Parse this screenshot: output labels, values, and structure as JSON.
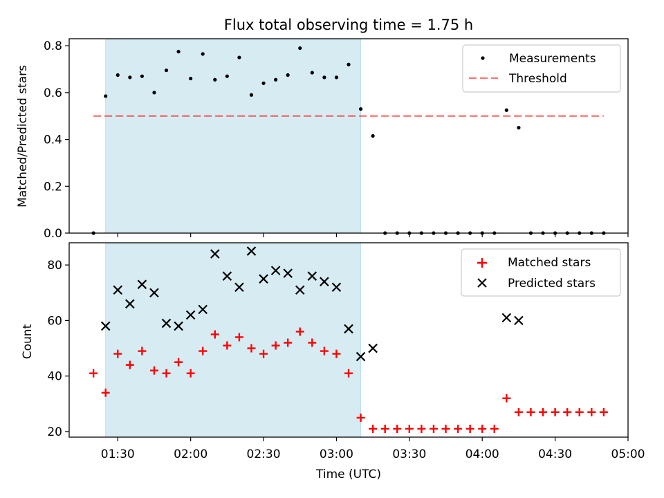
{
  "title": "Flux total observing time = 1.75 h",
  "colors": {
    "shade": "#add8e6",
    "threshold": "#ff0000",
    "matched": "#ff0000",
    "predicted": "#000000",
    "measurements": "#000000"
  },
  "chart_data": [
    {
      "type": "scatter",
      "ylabel": "Matched/Predicted stars",
      "xlim": [
        "01:10",
        "05:00"
      ],
      "ylim": [
        0,
        0.83
      ],
      "yticks": [
        "0.0",
        "0.2",
        "0.4",
        "0.6",
        "0.8"
      ],
      "grid": false,
      "legend": "top-right",
      "shaded_region": {
        "from": "01:25",
        "to": "03:10"
      },
      "threshold": {
        "name": "Threshold",
        "value": 0.5,
        "from": "01:20",
        "to": "04:50",
        "style": "dashed"
      },
      "series": [
        {
          "name": "Measurements",
          "marker": "dot",
          "points": [
            [
              "01:20",
              0.0
            ],
            [
              "01:25",
              0.585
            ],
            [
              "01:30",
              0.675
            ],
            [
              "01:35",
              0.665
            ],
            [
              "01:40",
              0.67
            ],
            [
              "01:45",
              0.6
            ],
            [
              "01:50",
              0.695
            ],
            [
              "01:55",
              0.775
            ],
            [
              "02:00",
              0.66
            ],
            [
              "02:05",
              0.765
            ],
            [
              "02:10",
              0.655
            ],
            [
              "02:15",
              0.67
            ],
            [
              "02:20",
              0.75
            ],
            [
              "02:25",
              0.59
            ],
            [
              "02:30",
              0.64
            ],
            [
              "02:35",
              0.655
            ],
            [
              "02:40",
              0.675
            ],
            [
              "02:45",
              0.79
            ],
            [
              "02:50",
              0.685
            ],
            [
              "02:55",
              0.665
            ],
            [
              "03:00",
              0.665
            ],
            [
              "03:05",
              0.72
            ],
            [
              "03:10",
              0.53
            ],
            [
              "03:15",
              0.415
            ],
            [
              "03:20",
              0.0
            ],
            [
              "03:25",
              0.0
            ],
            [
              "03:30",
              0.0
            ],
            [
              "03:35",
              0.0
            ],
            [
              "03:40",
              0.0
            ],
            [
              "03:45",
              0.0
            ],
            [
              "03:50",
              0.0
            ],
            [
              "03:55",
              0.0
            ],
            [
              "04:00",
              0.0
            ],
            [
              "04:05",
              0.0
            ],
            [
              "04:10",
              0.525
            ],
            [
              "04:15",
              0.45
            ],
            [
              "04:20",
              0.0
            ],
            [
              "04:25",
              0.0
            ],
            [
              "04:30",
              0.0
            ],
            [
              "04:35",
              0.0
            ],
            [
              "04:40",
              0.0
            ],
            [
              "04:45",
              0.0
            ],
            [
              "04:50",
              0.0
            ]
          ]
        }
      ]
    },
    {
      "type": "scatter",
      "xlabel": "Time (UTC)",
      "ylabel": "Count",
      "xlim": [
        "01:10",
        "05:00"
      ],
      "ylim": [
        18,
        88
      ],
      "xticks": [
        "01:30",
        "02:00",
        "02:30",
        "03:00",
        "03:30",
        "04:00",
        "04:30",
        "05:00"
      ],
      "yticks": [
        "20",
        "40",
        "60",
        "80"
      ],
      "grid": false,
      "legend": "top-right",
      "shaded_region": {
        "from": "01:25",
        "to": "03:10"
      },
      "series": [
        {
          "name": "Matched stars",
          "marker": "plus",
          "points": [
            [
              "01:20",
              41
            ],
            [
              "01:25",
              34
            ],
            [
              "01:30",
              48
            ],
            [
              "01:35",
              44
            ],
            [
              "01:40",
              49
            ],
            [
              "01:45",
              42
            ],
            [
              "01:50",
              41
            ],
            [
              "01:55",
              45
            ],
            [
              "02:00",
              41
            ],
            [
              "02:05",
              49
            ],
            [
              "02:10",
              55
            ],
            [
              "02:15",
              51
            ],
            [
              "02:20",
              54
            ],
            [
              "02:25",
              50
            ],
            [
              "02:30",
              48
            ],
            [
              "02:35",
              51
            ],
            [
              "02:40",
              52
            ],
            [
              "02:45",
              56
            ],
            [
              "02:50",
              52
            ],
            [
              "02:55",
              49
            ],
            [
              "03:00",
              48
            ],
            [
              "03:05",
              41
            ],
            [
              "03:10",
              25
            ],
            [
              "03:15",
              21
            ],
            [
              "03:20",
              21
            ],
            [
              "03:25",
              21
            ],
            [
              "03:30",
              21
            ],
            [
              "03:35",
              21
            ],
            [
              "03:40",
              21
            ],
            [
              "03:45",
              21
            ],
            [
              "03:50",
              21
            ],
            [
              "03:55",
              21
            ],
            [
              "04:00",
              21
            ],
            [
              "04:05",
              21
            ],
            [
              "04:10",
              32
            ],
            [
              "04:15",
              27
            ],
            [
              "04:20",
              27
            ],
            [
              "04:25",
              27
            ],
            [
              "04:30",
              27
            ],
            [
              "04:35",
              27
            ],
            [
              "04:40",
              27
            ],
            [
              "04:45",
              27
            ],
            [
              "04:50",
              27
            ]
          ]
        },
        {
          "name": "Predicted stars",
          "marker": "x",
          "points": [
            [
              "01:25",
              58
            ],
            [
              "01:30",
              71
            ],
            [
              "01:35",
              66
            ],
            [
              "01:40",
              73
            ],
            [
              "01:45",
              70
            ],
            [
              "01:50",
              59
            ],
            [
              "01:55",
              58
            ],
            [
              "02:00",
              62
            ],
            [
              "02:05",
              64
            ],
            [
              "02:10",
              84
            ],
            [
              "02:15",
              76
            ],
            [
              "02:20",
              72
            ],
            [
              "02:25",
              85
            ],
            [
              "02:30",
              75
            ],
            [
              "02:35",
              78
            ],
            [
              "02:40",
              77
            ],
            [
              "02:45",
              71
            ],
            [
              "02:50",
              76
            ],
            [
              "02:55",
              74
            ],
            [
              "03:00",
              72
            ],
            [
              "03:05",
              57
            ],
            [
              "03:10",
              47
            ],
            [
              "03:15",
              50
            ],
            [
              "04:10",
              61
            ],
            [
              "04:15",
              60
            ]
          ]
        }
      ]
    }
  ]
}
